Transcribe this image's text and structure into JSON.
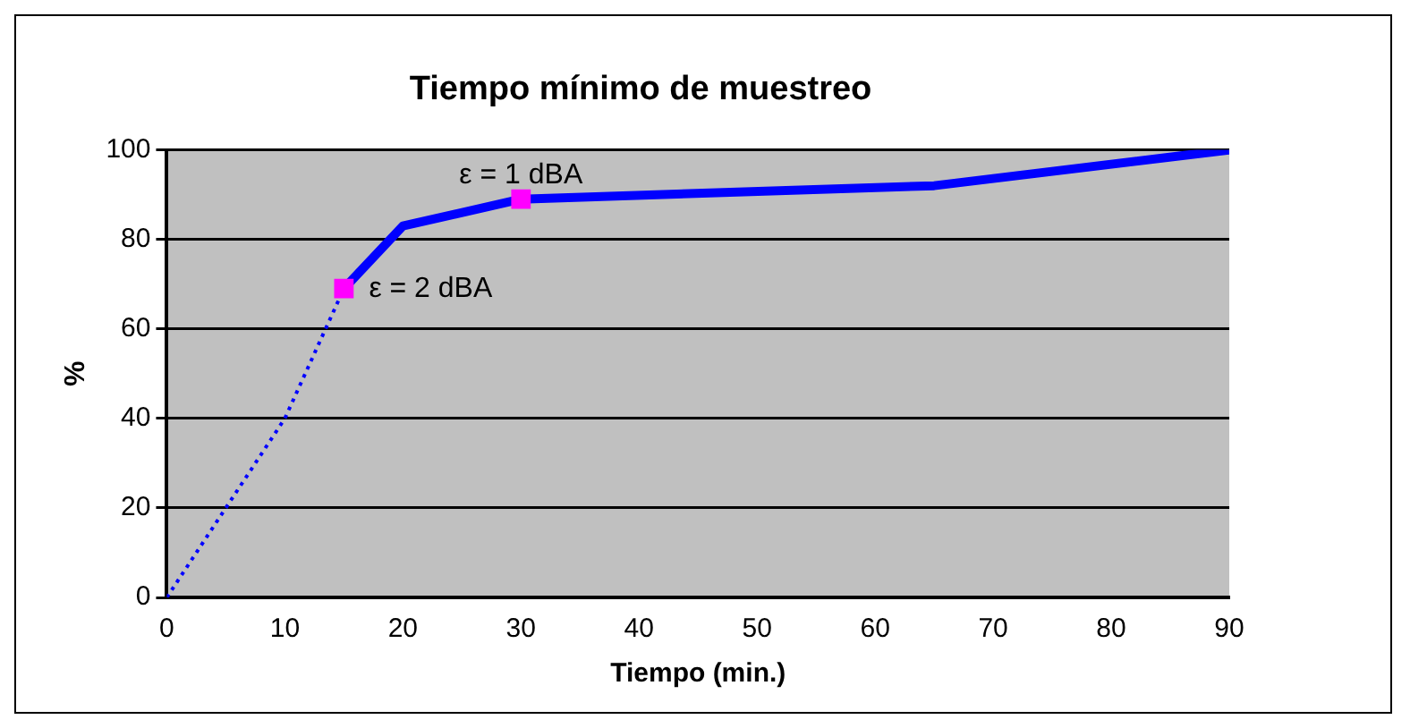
{
  "chart_data": {
    "type": "line",
    "title": "Tiempo mínimo de muestreo",
    "xlabel": "Tiempo (min.)",
    "ylabel": "%",
    "xlim": [
      0,
      90
    ],
    "xticks": [
      0,
      10,
      20,
      30,
      40,
      50,
      60,
      70,
      80,
      90
    ],
    "ylim": [
      0,
      100
    ],
    "yticks": [
      0,
      20,
      40,
      60,
      80,
      100
    ],
    "grid": "y",
    "legend": false,
    "series": [
      {
        "type": "line",
        "color": "#0000ff",
        "line_style": "dotted",
        "marker": "none",
        "x": [
          0,
          5,
          10,
          15
        ],
        "values": [
          0,
          20,
          40,
          69
        ]
      },
      {
        "type": "line",
        "color": "#0000ff",
        "line_style": "solid",
        "marker": "none",
        "x": [
          15,
          20,
          30,
          65,
          90
        ],
        "values": [
          69,
          83,
          89,
          92,
          100
        ]
      },
      {
        "type": "scatter",
        "color": "#ff00ff",
        "marker": "square",
        "x": [
          15,
          30
        ],
        "values": [
          69,
          89
        ]
      }
    ],
    "annotations": [
      {
        "text": "ε = 2 dBA",
        "x": 15,
        "y": 69
      },
      {
        "text": "ε = 1 dBA",
        "x": 30,
        "y": 89
      }
    ]
  }
}
